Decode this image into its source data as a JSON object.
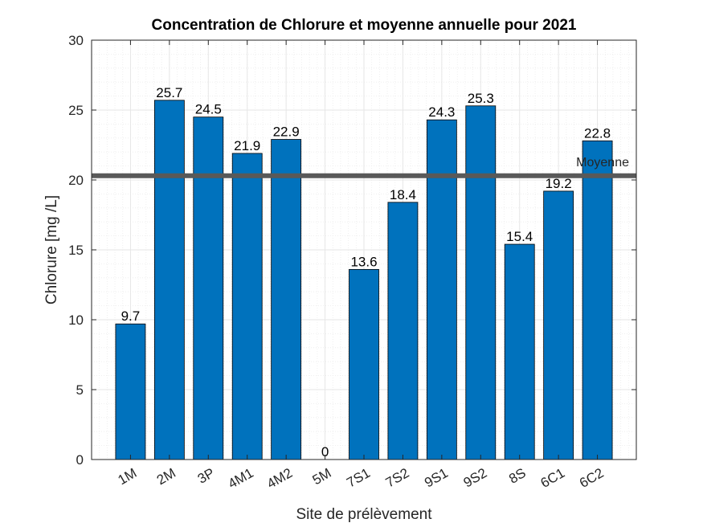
{
  "chart_data": {
    "type": "bar",
    "title": "Concentration de Chlorure et moyenne annuelle pour 2021",
    "xlabel": "Site de prélèvement",
    "ylabel": "Chlorure [mg /L]",
    "ylim": [
      0,
      30
    ],
    "yticks": [
      "0",
      "5",
      "10",
      "15",
      "20",
      "25",
      "30"
    ],
    "categories": [
      "1M",
      "2M",
      "3P",
      "4M1",
      "4M2",
      "5M",
      "7S1",
      "7S2",
      "9S1",
      "9S2",
      "8S",
      "6C1",
      "6C2"
    ],
    "values": [
      9.7,
      25.7,
      24.5,
      21.9,
      22.9,
      0,
      13.6,
      18.4,
      24.3,
      25.3,
      15.4,
      19.2,
      22.8
    ],
    "value_labels": [
      "9.7",
      "25.7",
      "24.5",
      "21.9",
      "22.9",
      "0",
      "13.6",
      "18.4",
      "24.3",
      "25.3",
      "15.4",
      "19.2",
      "22.8"
    ],
    "mean": {
      "label": "Moyenne",
      "value": 20.3
    },
    "grid": true,
    "colors": {
      "bar": "#0072BD",
      "mean_line": "#595959",
      "grid": "#e6e6e6"
    }
  }
}
